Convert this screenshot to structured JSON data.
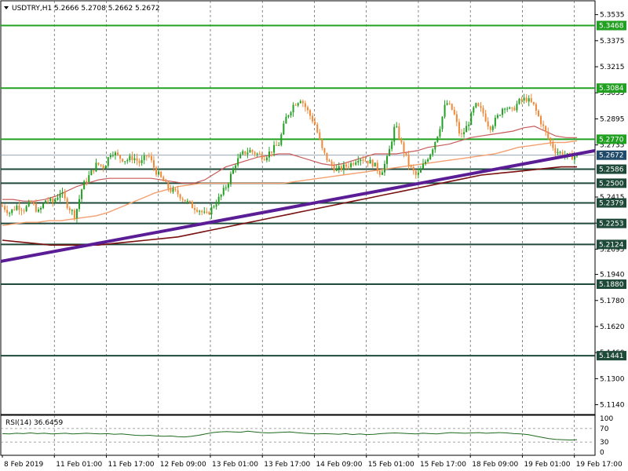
{
  "header": {
    "symbol": "USDTRY,H1",
    "ohlc": "5.2666 5.2708 5.2662 5.2672"
  },
  "rsi_header": "RSI(14) 36.6459",
  "colors": {
    "support_line": "#1f4a3a",
    "resistance_line": "#22a022",
    "trendline": "#5b1d96",
    "ma_fast": "#c85a5a",
    "ma_mid": "#f4a070",
    "ma_slow": "#7a1010",
    "candle_up": "#22a022",
    "candle_down": "#f08a3a",
    "rsi_line": "#1f6b1f",
    "current_price_tag": "#1f4a6a"
  },
  "chart_data": [
    {
      "type": "line",
      "name": "price-chart",
      "ylim": [
        5.108,
        5.362
      ],
      "y_ticks": [
        5.3535,
        5.3375,
        5.3215,
        5.3055,
        5.2895,
        5.2735,
        5.2415,
        5.2255,
        5.2095,
        5.194,
        5.178,
        5.162,
        5.146,
        5.13,
        5.114
      ],
      "x_ticks": [
        "8 Feb 2019",
        "11 Feb 01:00",
        "11 Feb 17:00",
        "12 Feb 09:00",
        "13 Feb 01:00",
        "13 Feb 17:00",
        "14 Feb 09:00",
        "15 Feb 01:00",
        "15 Feb 17:00",
        "18 Feb 09:00",
        "19 Feb 01:00",
        "19 Feb 17:00"
      ],
      "resistance_levels": [
        {
          "value": 5.3468,
          "label": "5.3468"
        },
        {
          "value": 5.3084,
          "label": "5.3084"
        },
        {
          "value": 5.277,
          "label": "5.2770"
        }
      ],
      "support_levels": [
        {
          "value": 5.2586,
          "label": "5.2586"
        },
        {
          "value": 5.25,
          "label": "5.2500"
        },
        {
          "value": 5.2379,
          "label": "5.2379"
        },
        {
          "value": 5.2253,
          "label": "5.2253"
        },
        {
          "value": 5.2124,
          "label": "5.2124"
        },
        {
          "value": 5.188,
          "label": "5.1880"
        },
        {
          "value": 5.1441,
          "label": "5.1441"
        }
      ],
      "current_price": {
        "value": 5.2672,
        "label": "5.2672"
      },
      "trendline": {
        "start": 5.202,
        "end": 5.27
      },
      "close_path": [
        5.236,
        5.232,
        5.236,
        5.234,
        5.238,
        5.232,
        5.24,
        5.238,
        5.245,
        5.236,
        5.23,
        5.248,
        5.255,
        5.262,
        5.26,
        5.27,
        5.266,
        5.264,
        5.266,
        5.262,
        5.268,
        5.258,
        5.252,
        5.246,
        5.244,
        5.24,
        5.236,
        5.234,
        5.23,
        5.236,
        5.242,
        5.25,
        5.262,
        5.268,
        5.27,
        5.268,
        5.266,
        5.27,
        5.274,
        5.29,
        5.298,
        5.302,
        5.294,
        5.286,
        5.27,
        5.262,
        5.258,
        5.26,
        5.262,
        5.266,
        5.264,
        5.262,
        5.256,
        5.266,
        5.286,
        5.272,
        5.26,
        5.254,
        5.262,
        5.27,
        5.282,
        5.3,
        5.294,
        5.278,
        5.286,
        5.298,
        5.294,
        5.284,
        5.29,
        5.298,
        5.294,
        5.3,
        5.302,
        5.298,
        5.288,
        5.278,
        5.27,
        5.268,
        5.266,
        5.267
      ],
      "ma_fast": [
        5.24,
        5.24,
        5.239,
        5.239,
        5.24,
        5.242,
        5.245,
        5.248,
        5.25,
        5.252,
        5.253,
        5.253,
        5.253,
        5.253,
        5.253,
        5.252,
        5.251,
        5.25,
        5.25,
        5.252,
        5.256,
        5.26,
        5.262,
        5.264,
        5.266,
        5.267,
        5.268,
        5.268,
        5.266,
        5.264,
        5.262,
        5.261,
        5.262,
        5.264,
        5.266,
        5.268,
        5.268,
        5.268,
        5.269,
        5.27,
        5.272,
        5.273,
        5.274,
        5.276,
        5.278,
        5.279,
        5.28,
        5.281,
        5.282,
        5.284,
        5.285,
        5.282,
        5.279,
        5.278,
        5.278
      ],
      "ma_mid": [
        5.224,
        5.225,
        5.226,
        5.226,
        5.227,
        5.227,
        5.228,
        5.229,
        5.23,
        5.232,
        5.235,
        5.238,
        5.241,
        5.244,
        5.246,
        5.248,
        5.249,
        5.25,
        5.25,
        5.25,
        5.25,
        5.25,
        5.25,
        5.25,
        5.25,
        5.251,
        5.252,
        5.253,
        5.254,
        5.255,
        5.256,
        5.257,
        5.258,
        5.259,
        5.26,
        5.261,
        5.262,
        5.263,
        5.264,
        5.265,
        5.266,
        5.267,
        5.268,
        5.27,
        5.272,
        5.273,
        5.274,
        5.275,
        5.275,
        5.276
      ],
      "ma_slow": [
        5.215,
        5.214,
        5.213,
        5.212,
        5.212,
        5.212,
        5.212,
        5.213,
        5.214,
        5.215,
        5.216,
        5.217,
        5.219,
        5.221,
        5.223,
        5.225,
        5.227,
        5.229,
        5.231,
        5.233,
        5.235,
        5.237,
        5.239,
        5.241,
        5.243,
        5.245,
        5.247,
        5.249,
        5.251,
        5.253,
        5.255,
        5.256,
        5.257,
        5.258,
        5.259,
        5.26,
        5.26
      ],
      "grid": true
    },
    {
      "type": "line",
      "name": "rsi-panel",
      "ylim": [
        0,
        100
      ],
      "levels": [
        70,
        30
      ],
      "y_ticks": [
        100,
        70,
        30,
        0
      ],
      "values": [
        55,
        54,
        56,
        55,
        57,
        55,
        56,
        54,
        55,
        56,
        54,
        55,
        56,
        55,
        54,
        55,
        53,
        54,
        52,
        50,
        49,
        50,
        48,
        47,
        48,
        46,
        45,
        47,
        50,
        54,
        58,
        60,
        61,
        60,
        59,
        62,
        60,
        58,
        57,
        58,
        59,
        60,
        58,
        56,
        55,
        54,
        55,
        54,
        53,
        55,
        52,
        54,
        52,
        53,
        55,
        56,
        57,
        56,
        55,
        54,
        56,
        55,
        54,
        56,
        58,
        57,
        56,
        57,
        58,
        56,
        57,
        58,
        57,
        55,
        54,
        52,
        48,
        44,
        40,
        38,
        37,
        36,
        37
      ]
    }
  ]
}
